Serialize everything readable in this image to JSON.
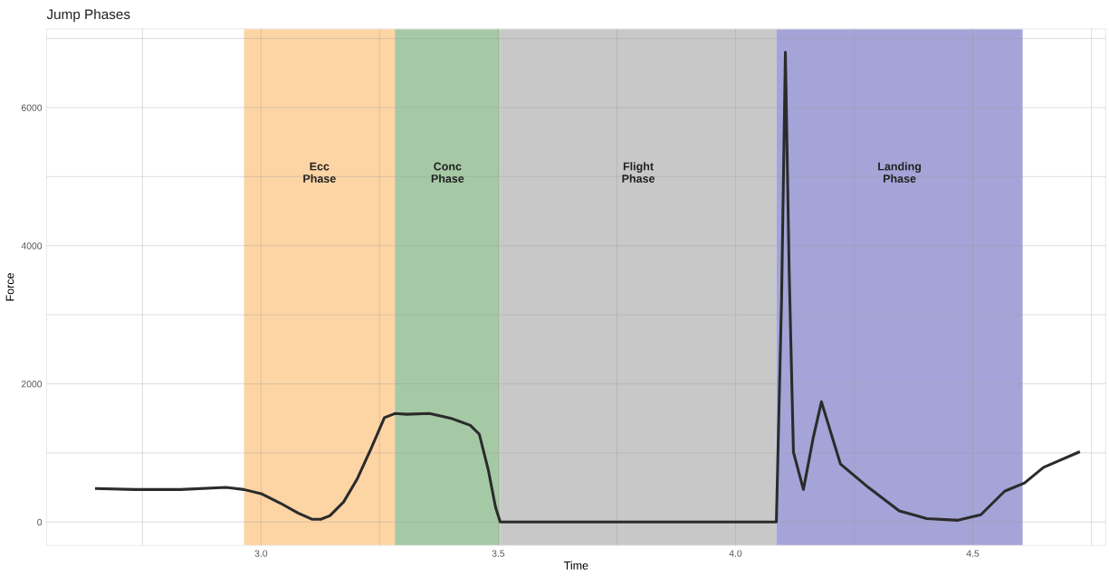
{
  "chart_data": {
    "type": "line",
    "title": "Jump Phases",
    "xlabel": "Time",
    "ylabel": "Force",
    "xlim": [
      2.548,
      4.78
    ],
    "ylim": [
      -340,
      7140
    ],
    "xticks": [
      {
        "value": 2.75,
        "label": null
      },
      {
        "value": 3.0,
        "label": "3.0"
      },
      {
        "value": 3.25,
        "label": null
      },
      {
        "value": 3.5,
        "label": "3.5"
      },
      {
        "value": 3.75,
        "label": null
      },
      {
        "value": 4.0,
        "label": "4.0"
      },
      {
        "value": 4.25,
        "label": null
      },
      {
        "value": 4.5,
        "label": "4.5"
      },
      {
        "value": 4.75,
        "label": null
      }
    ],
    "yticks": [
      0,
      {
        "value": 1000,
        "label": null
      },
      2000,
      {
        "value": 3000,
        "label": null
      },
      4000,
      {
        "value": 5000,
        "label": null
      },
      6000,
      {
        "value": 7000,
        "label": null
      }
    ],
    "grid": true,
    "bands": [
      {
        "axis": "x",
        "from": 2.964,
        "to": 3.282,
        "label": "Ecc\nPhase",
        "color": "#fdd5a4"
      },
      {
        "axis": "x",
        "from": 3.282,
        "to": 3.504,
        "label": "Conc\nPhase",
        "color": "#a5c9a5"
      },
      {
        "axis": "x",
        "from": 3.504,
        "to": 4.086,
        "label": "Flight\nPhase",
        "color": "#c8c8c8"
      },
      {
        "axis": "x",
        "from": 4.086,
        "to": 4.605,
        "label": "Landing\nPhase",
        "color": "#a4a4d8"
      }
    ],
    "series": [
      {
        "color": "#2b2b2b",
        "x": [
          2.653,
          2.735,
          2.83,
          2.926,
          2.964,
          3.002,
          3.04,
          3.078,
          3.107,
          3.126,
          3.145,
          3.174,
          3.202,
          3.231,
          3.26,
          3.282,
          3.307,
          3.355,
          3.403,
          3.441,
          3.46,
          3.479,
          3.494,
          3.504,
          3.75,
          4.086,
          4.097,
          4.105,
          4.113,
          4.122,
          4.143,
          4.164,
          4.181,
          4.221,
          4.28,
          4.345,
          4.403,
          4.469,
          4.517,
          4.567,
          4.609,
          4.649,
          4.723
        ],
        "values": [
          485,
          470,
          470,
          500,
          470,
          405,
          275,
          130,
          40,
          40,
          90,
          290,
          615,
          1050,
          1510,
          1570,
          1560,
          1570,
          1495,
          1400,
          1270,
          750,
          220,
          0,
          0,
          0,
          3240,
          6800,
          3630,
          1010,
          470,
          1230,
          1740,
          840,
          500,
          160,
          50,
          25,
          105,
          445,
          565,
          790,
          1010
        ]
      }
    ]
  }
}
